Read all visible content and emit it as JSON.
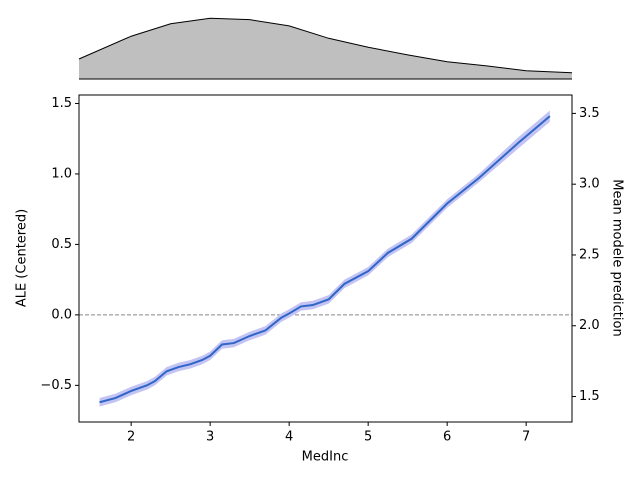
{
  "chart_data": [
    {
      "type": "area",
      "color": "#bfbfbf",
      "x": [
        1.34,
        2.0,
        2.5,
        3.0,
        3.5,
        4.0,
        4.5,
        5.0,
        5.5,
        6.0,
        6.5,
        7.0,
        7.58
      ],
      "values": [
        0.29,
        0.62,
        0.8,
        0.88,
        0.86,
        0.77,
        0.59,
        0.46,
        0.35,
        0.25,
        0.19,
        0.12,
        0.09
      ],
      "xlim": [
        1.34,
        7.58
      ],
      "ylim": [
        0,
        1
      ]
    },
    {
      "type": "line",
      "x_label": "MedInc",
      "y_label": "ALE (Centered)",
      "y2_label": "Mean modele prediction",
      "xlim": [
        1.34,
        7.58
      ],
      "ylim": [
        -0.76,
        1.56
      ],
      "y2lim": [
        1.32,
        3.63
      ],
      "xticks": [
        2,
        3,
        4,
        5,
        6,
        7
      ],
      "yticks": [
        {
          "value": -0.5,
          "label": "−0.5"
        },
        {
          "value": 0,
          "label": "0.0"
        },
        0.5,
        {
          "value": 1,
          "label": "1.0"
        },
        1.5
      ],
      "y2ticks": [
        1.5,
        {
          "value": 2,
          "label": "2.0"
        },
        2.5,
        {
          "value": 3,
          "label": "3.0"
        },
        3.5
      ],
      "hline": 0,
      "x": [
        1.6,
        1.8,
        2.0,
        2.2,
        2.3,
        2.45,
        2.6,
        2.75,
        2.9,
        3.0,
        3.15,
        3.3,
        3.5,
        3.7,
        3.9,
        4.0,
        4.15,
        4.3,
        4.5,
        4.7,
        5.0,
        5.25,
        5.55,
        6.0,
        6.4,
        6.9,
        7.3
      ],
      "series": [
        {
          "color": "#2f66c8",
          "band_color": "#c4c4f4",
          "values": [
            -0.62,
            -0.59,
            -0.54,
            -0.5,
            -0.47,
            -0.4,
            -0.37,
            -0.35,
            -0.32,
            -0.29,
            -0.21,
            -0.2,
            -0.15,
            -0.11,
            -0.02,
            0.01,
            0.06,
            0.07,
            0.11,
            0.22,
            0.31,
            0.44,
            0.54,
            0.79,
            0.97,
            1.22,
            1.41
          ],
          "lower": [
            -0.65,
            -0.62,
            -0.57,
            -0.53,
            -0.5,
            -0.43,
            -0.4,
            -0.38,
            -0.35,
            -0.32,
            -0.24,
            -0.23,
            -0.18,
            -0.14,
            -0.05,
            -0.02,
            0.03,
            0.04,
            0.08,
            0.19,
            0.28,
            0.41,
            0.51,
            0.76,
            0.94,
            1.18,
            1.37
          ],
          "upper": [
            -0.59,
            -0.56,
            -0.51,
            -0.47,
            -0.44,
            -0.37,
            -0.34,
            -0.32,
            -0.29,
            -0.26,
            -0.18,
            -0.17,
            -0.12,
            -0.08,
            0.01,
            0.04,
            0.09,
            0.1,
            0.14,
            0.25,
            0.34,
            0.47,
            0.57,
            0.82,
            1.0,
            1.26,
            1.45
          ]
        }
      ]
    }
  ]
}
